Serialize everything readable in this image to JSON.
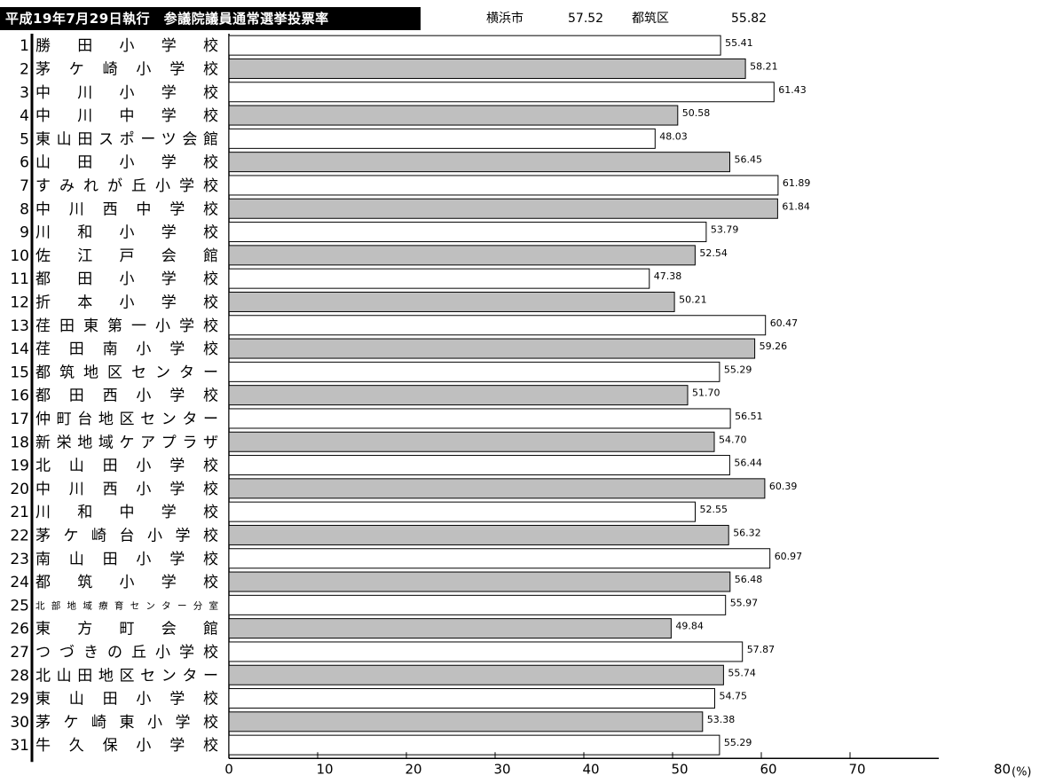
{
  "header": {
    "title": "平成19年7月29日執行　参議院議員通常選挙投票率",
    "city_label": "横浜市",
    "city_value": "57.52",
    "ward_label": "都筑区",
    "ward_value": "55.82"
  },
  "chart_data": {
    "type": "bar",
    "orientation": "horizontal",
    "title": "平成19年7月29日執行　参議院議員通常選挙投票率",
    "categories": [
      "勝田小学校",
      "茅ケ崎小学校",
      "中川小学校",
      "中川中学校",
      "東山田スポーツ会館",
      "山田小学校",
      "すみれが丘小学校",
      "中川西中学校",
      "川和小学校",
      "佐江戸会館",
      "都田小学校",
      "折本小学校",
      "荏田東第一小学校",
      "荏田南小学校",
      "都筑地区センター",
      "都田西小学校",
      "仲町台地区センター",
      "新栄地域ケアプラザ",
      "北山田小学校",
      "中川西小学校",
      "川和中学校",
      "茅ケ崎台小学校",
      "南山田小学校",
      "都筑小学校",
      "北部地域療育センター分室",
      "東方町会館",
      "つづきの丘小学校",
      "北山田地区センター",
      "東山田小学校",
      "茅ケ崎東小学校",
      "牛久保小学校"
    ],
    "numbers": [
      "1",
      "2",
      "3",
      "4",
      "5",
      "6",
      "7",
      "8",
      "9",
      "10",
      "11",
      "12",
      "13",
      "14",
      "15",
      "16",
      "17",
      "18",
      "19",
      "20",
      "21",
      "22",
      "23",
      "24",
      "25",
      "26",
      "27",
      "28",
      "29",
      "30",
      "31"
    ],
    "values": [
      55.41,
      58.21,
      61.43,
      50.58,
      48.03,
      56.45,
      61.89,
      61.84,
      53.79,
      52.54,
      47.38,
      50.21,
      60.47,
      59.26,
      55.29,
      51.7,
      56.51,
      54.7,
      56.44,
      60.39,
      52.55,
      56.32,
      60.97,
      56.48,
      55.97,
      49.84,
      57.87,
      55.74,
      54.75,
      53.38,
      55.29
    ],
    "value_labels": [
      "55.41",
      "58.21",
      "61.43",
      "50.58",
      "48.03",
      "56.45",
      "61.89",
      "61.84",
      "53.79",
      "52.54",
      "47.38",
      "50.21",
      "60.47",
      "59.26",
      "55.29",
      "51.70",
      "56.51",
      "54.70",
      "56.44",
      "60.39",
      "52.55",
      "56.32",
      "60.97",
      "56.48",
      "55.97",
      "49.84",
      "57.87",
      "55.74",
      "54.75",
      "53.38",
      "55.29"
    ],
    "xlim": [
      0,
      80
    ],
    "ticks": [
      0,
      10,
      20,
      30,
      40,
      50,
      60,
      70,
      80
    ],
    "tick_labels": [
      "0",
      "10",
      "20",
      "30",
      "40",
      "50",
      "60",
      "70",
      "80"
    ],
    "unit_label": "(%)",
    "grid": false,
    "bar_colors": [
      "#ffffff",
      "#bfbfbf"
    ],
    "bar_stroke": "#000000"
  }
}
